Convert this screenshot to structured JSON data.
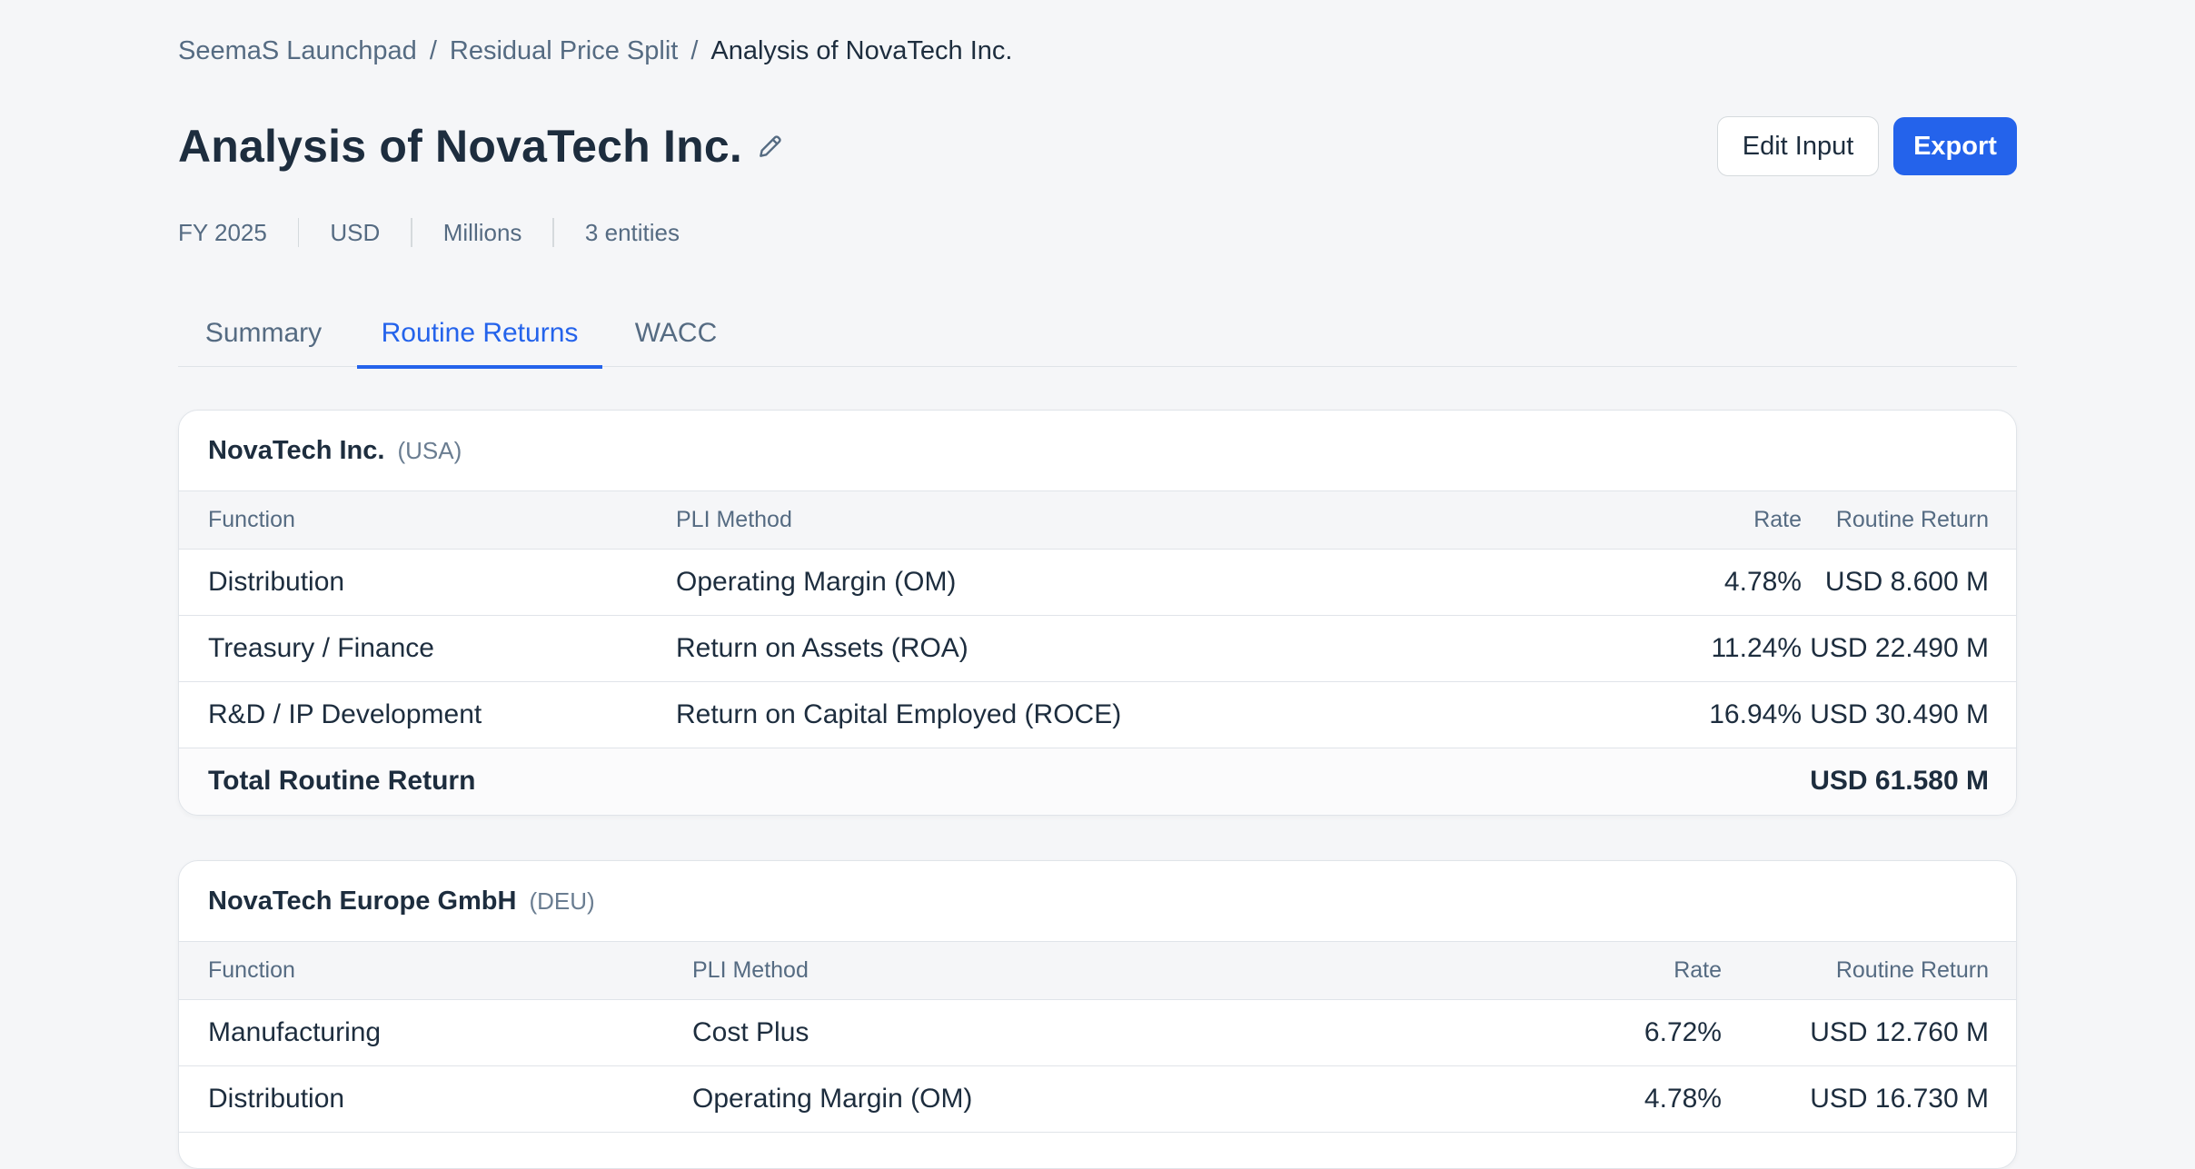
{
  "breadcrumb": {
    "items": [
      "SeemaS Launchpad",
      "Residual Price Split"
    ],
    "current": "Analysis of NovaTech Inc."
  },
  "header": {
    "title": "Analysis of NovaTech Inc.",
    "edit_input_label": "Edit Input",
    "export_label": "Export"
  },
  "meta": {
    "fiscal_year": "FY 2025",
    "currency": "USD",
    "unit": "Millions",
    "entities": "3 entities"
  },
  "tabs": [
    {
      "label": "Summary",
      "active": false
    },
    {
      "label": "Routine Returns",
      "active": true
    },
    {
      "label": "WACC",
      "active": false
    }
  ],
  "colors": {
    "accent": "#2463eb",
    "text": "#1d2d3e",
    "muted": "#556b82",
    "background": "#f5f6f8"
  },
  "icons": {
    "edit_title": "pencil-icon"
  },
  "cards": [
    {
      "name": "NovaTech Inc.",
      "country": "(USA)",
      "columns": [
        "Function",
        "PLI Method",
        "Rate",
        "Routine Return"
      ],
      "rows": [
        {
          "function": "Distribution",
          "method": "Operating Margin (OM)",
          "rate": "4.78%",
          "return": "USD 8.600 M"
        },
        {
          "function": "Treasury / Finance",
          "method": "Return on Assets (ROA)",
          "rate": "11.24%",
          "return": "USD 22.490 M"
        },
        {
          "function": "R&D / IP Development",
          "method": "Return on Capital Employed (ROCE)",
          "rate": "16.94%",
          "return": "USD 30.490 M"
        }
      ],
      "total_label": "Total Routine Return",
      "total_value": "USD 61.580 M"
    },
    {
      "name": "NovaTech Europe GmbH",
      "country": "(DEU)",
      "columns": [
        "Function",
        "PLI Method",
        "Rate",
        "Routine Return"
      ],
      "rows": [
        {
          "function": "Manufacturing",
          "method": "Cost Plus",
          "rate": "6.72%",
          "return": "USD 12.760 M"
        },
        {
          "function": "Distribution",
          "method": "Operating Margin (OM)",
          "rate": "4.78%",
          "return": "USD 16.730 M"
        }
      ]
    }
  ]
}
